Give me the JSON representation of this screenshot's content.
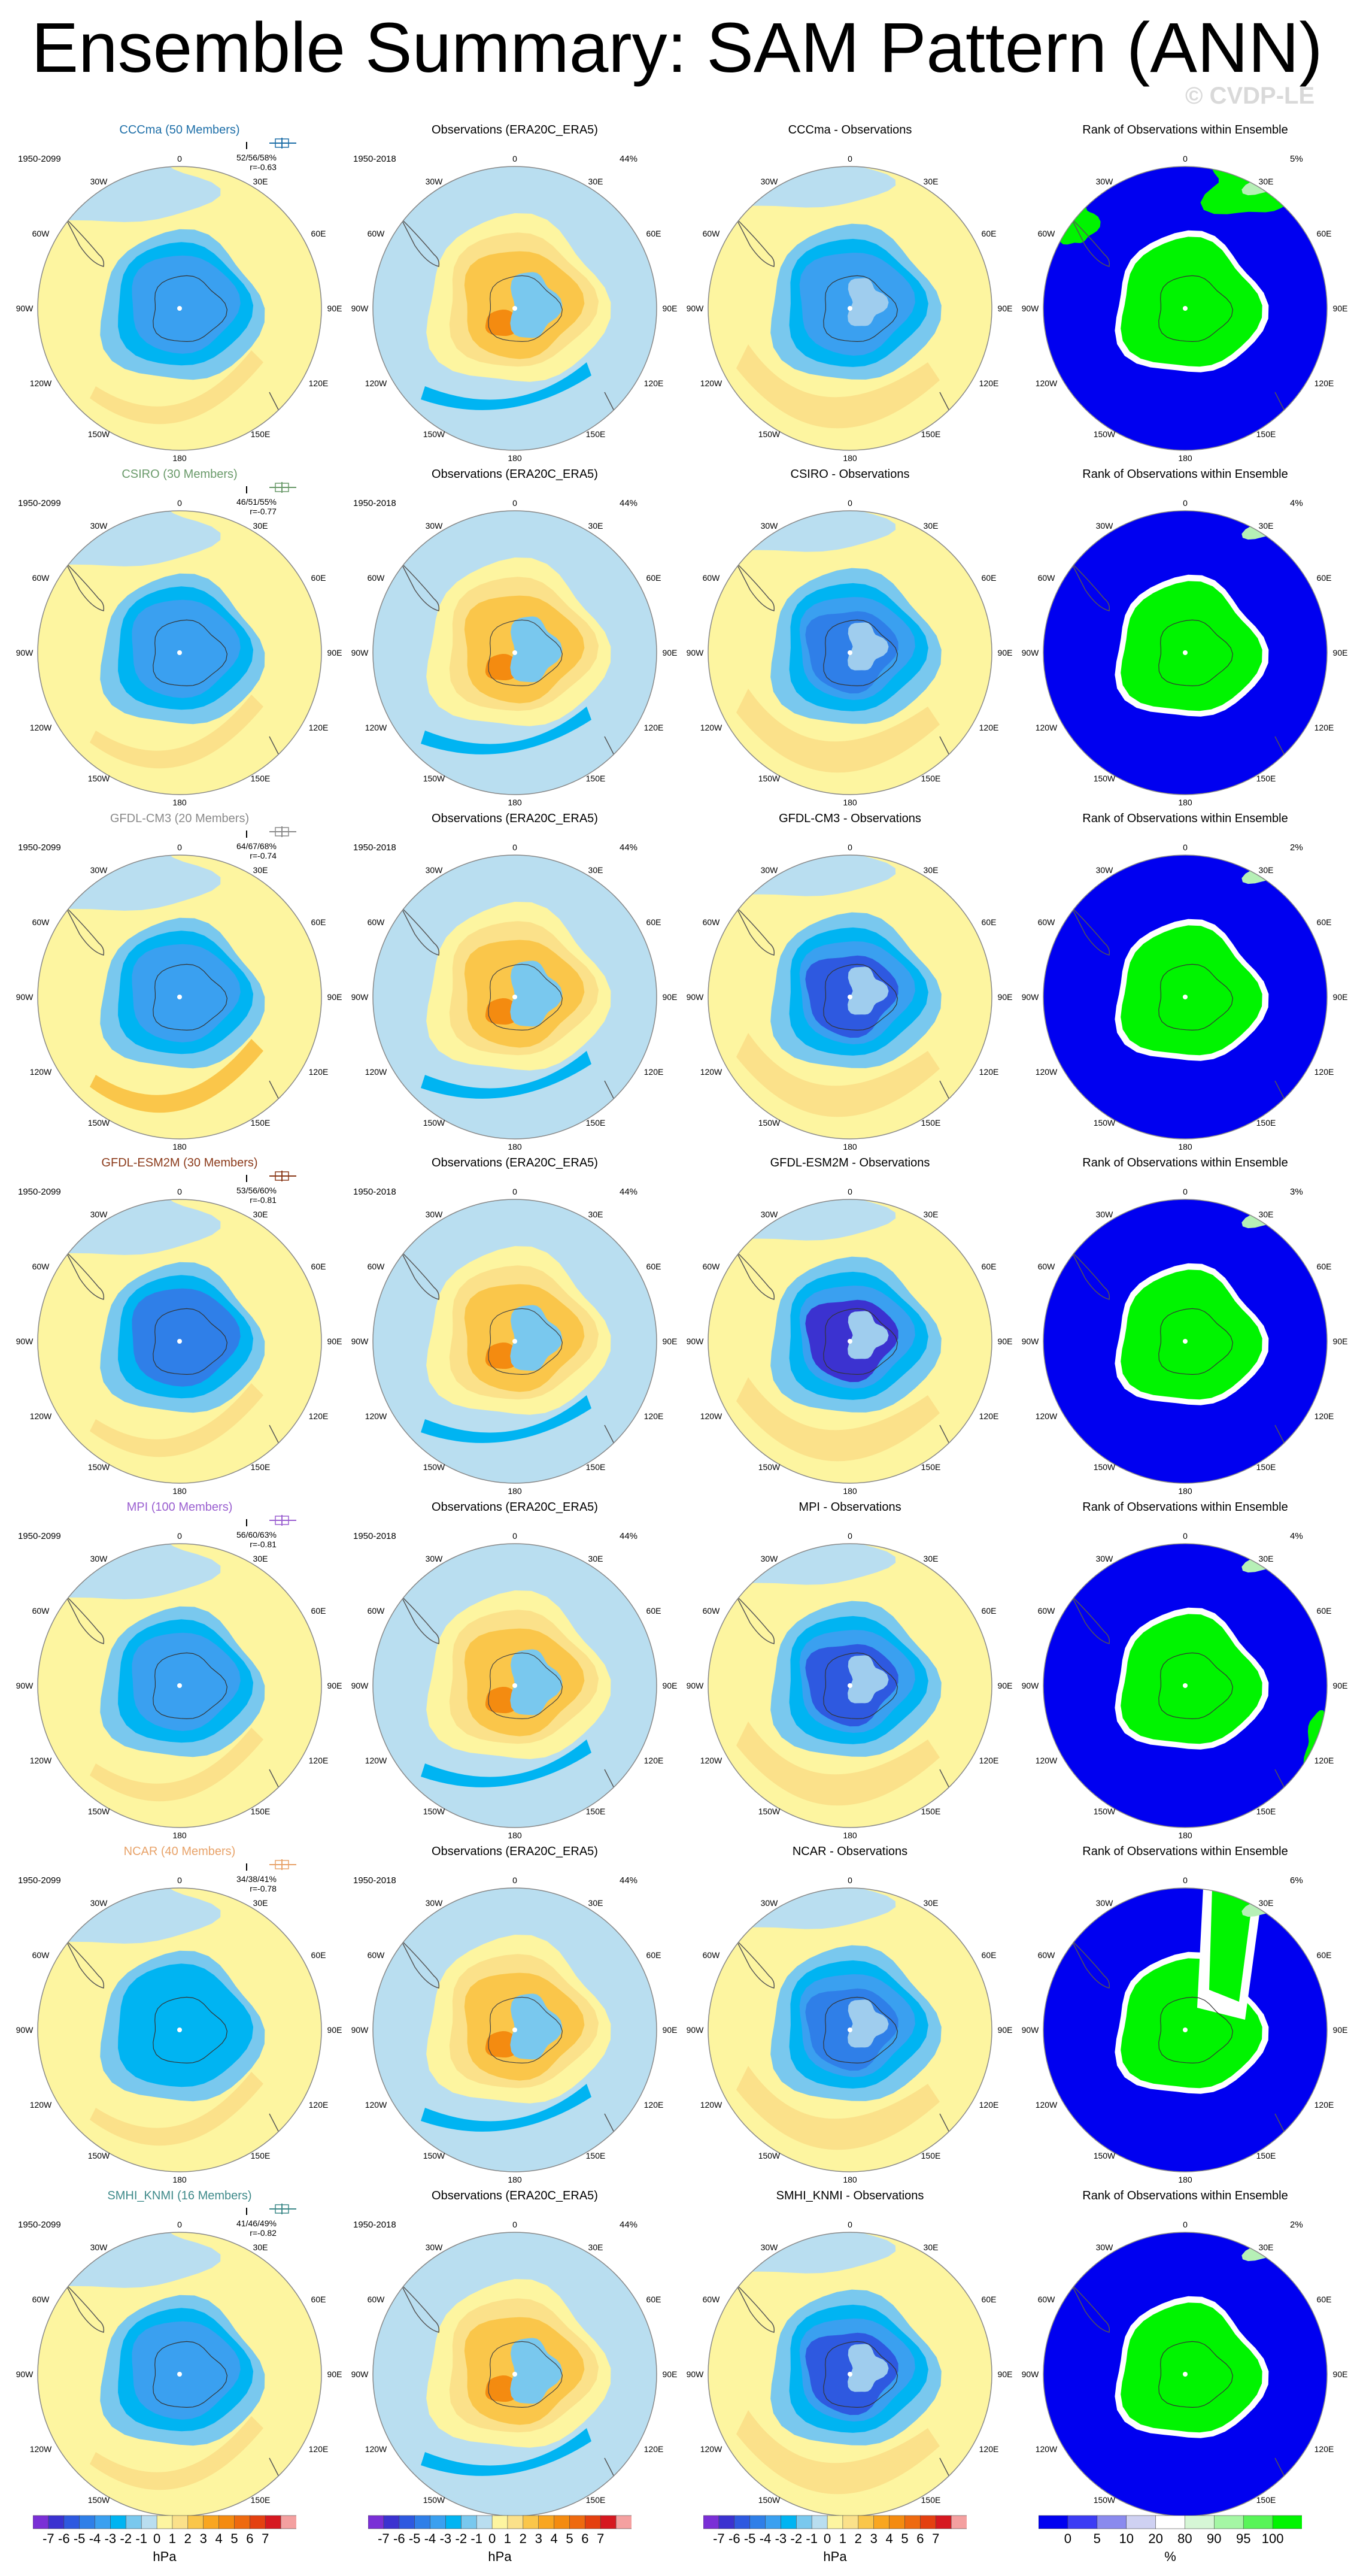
{
  "title": "Ensemble Summary: SAM Pattern (ANN)",
  "watermark": "© CVDP-LE",
  "colors": {
    "models": {
      "CCCma": "#1e6fa8",
      "CSIRO": "#6a9a6a",
      "GFDL-CM3": "#8a8a8a",
      "GFDL-ESM2M": "#8b3a1a",
      "MPI": "#9a5fd0",
      "NCAR": "#e8a36a",
      "SMHI_KNMI": "#3f8a8a"
    },
    "rank_green": "#00f400",
    "rank_blue": "#0000f0",
    "ocean": "#b9def0",
    "sst_levels": [
      "#7a2fd6",
      "#3b32d0",
      "#2e59e0",
      "#2f7fe8",
      "#3aa0f0",
      "#00b4f2",
      "#79c8ee",
      "#b9def0",
      "#fdf5a0",
      "#fbe18a",
      "#fac64a",
      "#f9a620",
      "#f48b10",
      "#ee6a10",
      "#e44010",
      "#d61820",
      "#f4a0a0"
    ]
  },
  "lon_labels": {
    "top": "0",
    "ne": "30E",
    "nw": "30W",
    "e1": "60E",
    "w1": "60W",
    "e": "90E",
    "w": "90W",
    "e2": "120E",
    "w2": "120W",
    "se": "150E",
    "sw": "150W",
    "bottom": "180"
  },
  "rows": [
    {
      "model": "CCCma",
      "title": "CCCma (50 Members)",
      "period": "1950-2099",
      "stats": "52/56/58%",
      "r": "r=-0.63",
      "obs_title": "Observations (ERA20C_ERA5)",
      "obs_period": "1950-2018",
      "obs_pct": "44%",
      "diff_title": "CCCma - Observations",
      "rank_title": "Rank of Observations within Ensemble",
      "rank_pct": "5%"
    },
    {
      "model": "CSIRO",
      "title": "CSIRO (30 Members)",
      "period": "1950-2099",
      "stats": "46/51/55%",
      "r": "r=-0.77",
      "obs_title": "Observations (ERA20C_ERA5)",
      "obs_period": "1950-2018",
      "obs_pct": "44%",
      "diff_title": "CSIRO - Observations",
      "rank_title": "Rank of Observations within Ensemble",
      "rank_pct": "4%"
    },
    {
      "model": "GFDL-CM3",
      "title": "GFDL-CM3 (20 Members)",
      "period": "1950-2099",
      "stats": "64/67/68%",
      "r": "r=-0.74",
      "obs_title": "Observations (ERA20C_ERA5)",
      "obs_period": "1950-2018",
      "obs_pct": "44%",
      "diff_title": "GFDL-CM3 - Observations",
      "rank_title": "Rank of Observations within Ensemble",
      "rank_pct": "2%"
    },
    {
      "model": "GFDL-ESM2M",
      "title": "GFDL-ESM2M (30 Members)",
      "period": "1950-2099",
      "stats": "53/56/60%",
      "r": "r=-0.81",
      "obs_title": "Observations (ERA20C_ERA5)",
      "obs_period": "1950-2018",
      "obs_pct": "44%",
      "diff_title": "GFDL-ESM2M - Observations",
      "rank_title": "Rank of Observations within Ensemble",
      "rank_pct": "3%"
    },
    {
      "model": "MPI",
      "title": "MPI (100 Members)",
      "period": "1950-2099",
      "stats": "56/60/63%",
      "r": "r=-0.81",
      "obs_title": "Observations (ERA20C_ERA5)",
      "obs_period": "1950-2018",
      "obs_pct": "44%",
      "diff_title": "MPI - Observations",
      "rank_title": "Rank of Observations within Ensemble",
      "rank_pct": "4%"
    },
    {
      "model": "NCAR",
      "title": "NCAR (40 Members)",
      "period": "1950-2099",
      "stats": "34/38/41%",
      "r": "r=-0.78",
      "obs_title": "Observations (ERA20C_ERA5)",
      "obs_period": "1950-2018",
      "obs_pct": "44%",
      "diff_title": "NCAR - Observations",
      "rank_title": "Rank of Observations within Ensemble",
      "rank_pct": "6%"
    },
    {
      "model": "SMHI_KNMI",
      "title": "SMHI_KNMI (16 Members)",
      "period": "1950-2099",
      "stats": "41/46/49%",
      "r": "r=-0.82",
      "obs_title": "Observations (ERA20C_ERA5)",
      "obs_period": "1950-2018",
      "obs_pct": "44%",
      "diff_title": "SMHI_KNMI - Observations",
      "rank_title": "Rank of Observations within Ensemble",
      "rank_pct": "2%"
    }
  ],
  "colorbars": {
    "sam": {
      "labels": [
        "-7",
        "-6",
        "-5",
        "-4",
        "-3",
        "-2",
        "-1",
        "0",
        "1",
        "2",
        "3",
        "4",
        "5",
        "6",
        "7"
      ],
      "unit": "hPa"
    },
    "rank": {
      "labels": [
        "0",
        "5",
        "10",
        "20",
        "80",
        "90",
        "95",
        "100"
      ],
      "unit": "%",
      "colors": [
        "#0000f0",
        "#3c3cf4",
        "#8a8aee",
        "#cfd1f2",
        "#ffffff",
        "#d6f6d6",
        "#a4f6a4",
        "#58f458",
        "#00f400"
      ]
    }
  }
}
